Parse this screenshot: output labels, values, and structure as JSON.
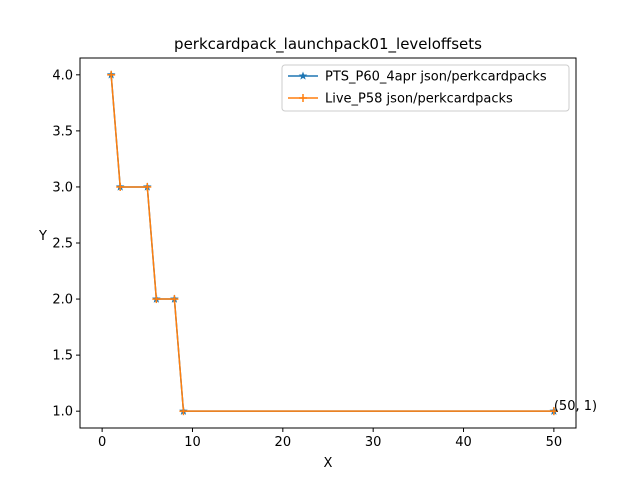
{
  "chart_data": {
    "type": "line",
    "title": "perkcardpack_launchpack01_leveloffsets",
    "xlabel": "X",
    "ylabel": "Y",
    "xlim": [
      -2.45,
      52.45
    ],
    "ylim": [
      0.85,
      4.15
    ],
    "xticks": [
      0,
      10,
      20,
      30,
      40,
      50
    ],
    "yticks": [
      1.0,
      1.5,
      2.0,
      2.5,
      3.0,
      3.5,
      4.0
    ],
    "xtick_labels": [
      "0",
      "10",
      "20",
      "30",
      "40",
      "50"
    ],
    "ytick_labels": [
      "1.0",
      "1.5",
      "2.0",
      "2.5",
      "3.0",
      "3.5",
      "4.0"
    ],
    "grid": false,
    "legend_position": "top-right",
    "series": [
      {
        "name": "PTS_P60_4apr json/perkcardpacks",
        "color": "#1f77b4",
        "marker": "star",
        "x": [
          1,
          2,
          5,
          6,
          8,
          9,
          50
        ],
        "y": [
          4,
          3,
          3,
          2,
          2,
          1,
          1
        ]
      },
      {
        "name": "Live_P58 json/perkcardpacks",
        "color": "#ff7f0e",
        "marker": "plus",
        "x": [
          1,
          2,
          5,
          6,
          8,
          9,
          50
        ],
        "y": [
          4,
          3,
          3,
          2,
          2,
          1,
          1
        ]
      }
    ],
    "annotations": [
      {
        "text": "(50, 1)",
        "x": 50,
        "y": 1
      }
    ]
  }
}
